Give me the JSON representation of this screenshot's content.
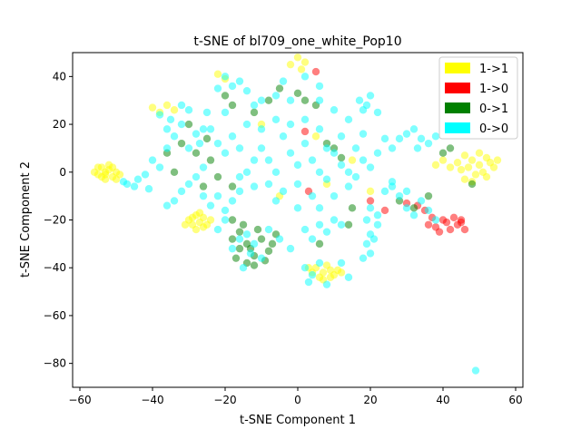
{
  "chart_data": {
    "type": "scatter",
    "title": "t-SNE of bl709_one_white_Pop10",
    "xlabel": "t-SNE Component 1",
    "ylabel": "t-SNE Component 2",
    "xlim": [
      -62,
      62
    ],
    "ylim": [
      -90,
      50
    ],
    "xticks": [
      -60,
      -40,
      -20,
      0,
      20,
      40,
      60
    ],
    "yticks": [
      -80,
      -60,
      -40,
      -20,
      0,
      20,
      40
    ],
    "xtick_labels": [
      "−60",
      "−40",
      "−20",
      "0",
      "20",
      "40",
      "60"
    ],
    "ytick_labels": [
      "−80",
      "−60",
      "−40",
      "−20",
      "0",
      "20",
      "40"
    ],
    "grid": false,
    "legend_position": "top-right",
    "colors": {
      "1->1": "#ffff00",
      "1->0": "#ff0000",
      "0->1": "#008000",
      "0->0": "#00ffff"
    },
    "series": [
      {
        "name": "1->1",
        "color": "#ffff00",
        "points": [
          [
            -54,
            2
          ],
          [
            -53,
            0
          ],
          [
            -55,
            -1
          ],
          [
            -52,
            1
          ],
          [
            -51,
            -2
          ],
          [
            -53,
            -3
          ],
          [
            -56,
            0
          ],
          [
            -50,
            0
          ],
          [
            -52,
            3
          ],
          [
            -54,
            -2
          ],
          [
            -49,
            -1
          ],
          [
            -51,
            2
          ],
          [
            -55,
            2
          ],
          [
            -53,
            -1
          ],
          [
            -50,
            -3
          ],
          [
            -28,
            -18
          ],
          [
            -27,
            -21
          ],
          [
            -29,
            -22
          ],
          [
            -26,
            -19
          ],
          [
            -30,
            -20
          ],
          [
            -25,
            -22
          ],
          [
            -28,
            -24
          ],
          [
            -27,
            -17
          ],
          [
            -24,
            -20
          ],
          [
            -29,
            -19
          ],
          [
            -26,
            -23
          ],
          [
            -31,
            -22
          ],
          [
            5,
            -40
          ],
          [
            7,
            -42
          ],
          [
            9,
            -41
          ],
          [
            6,
            -44
          ],
          [
            10,
            -43
          ],
          [
            8,
            -39
          ],
          [
            4,
            -42
          ],
          [
            11,
            -41
          ],
          [
            7,
            -45
          ],
          [
            3,
            -40
          ],
          [
            9,
            -44
          ],
          [
            12,
            -42
          ],
          [
            48,
            5
          ],
          [
            50,
            3
          ],
          [
            52,
            6
          ],
          [
            47,
            2
          ],
          [
            51,
            0
          ],
          [
            53,
            4
          ],
          [
            46,
            7
          ],
          [
            49,
            -1
          ],
          [
            54,
            2
          ],
          [
            50,
            8
          ],
          [
            45,
            1
          ],
          [
            52,
            -2
          ],
          [
            48,
            -4
          ],
          [
            44,
            4
          ],
          [
            55,
            5
          ],
          [
            42,
            2
          ],
          [
            40,
            5
          ],
          [
            38,
            3
          ],
          [
            46,
            -3
          ],
          [
            -40,
            27
          ],
          [
            -38,
            25
          ],
          [
            -36,
            28
          ],
          [
            -34,
            26
          ],
          [
            -22,
            41
          ],
          [
            -20,
            39
          ],
          [
            0,
            48
          ],
          [
            2,
            46
          ],
          [
            -2,
            45
          ],
          [
            1,
            43
          ],
          [
            -10,
            20
          ],
          [
            5,
            15
          ],
          [
            8,
            -5
          ],
          [
            -5,
            -10
          ],
          [
            15,
            5
          ],
          [
            20,
            -8
          ]
        ]
      },
      {
        "name": "1->0",
        "color": "#ff0000",
        "points": [
          [
            36,
            -22
          ],
          [
            38,
            -23
          ],
          [
            40,
            -20
          ],
          [
            42,
            -24
          ],
          [
            44,
            -22
          ],
          [
            46,
            -24
          ],
          [
            39,
            -25
          ],
          [
            41,
            -21
          ],
          [
            43,
            -19
          ],
          [
            45,
            -21
          ],
          [
            37,
            -19
          ],
          [
            35,
            -16
          ],
          [
            33,
            -14
          ],
          [
            30,
            -13
          ],
          [
            5,
            42
          ],
          [
            3,
            -8
          ],
          [
            2,
            17
          ],
          [
            20,
            -12
          ],
          [
            24,
            -16
          ],
          [
            45,
            -20
          ]
        ]
      },
      {
        "name": "0->1",
        "color": "#008000",
        "points": [
          [
            -18,
            -20
          ],
          [
            -16,
            -25
          ],
          [
            -14,
            -30
          ],
          [
            -12,
            -35
          ],
          [
            -16,
            -32
          ],
          [
            -10,
            -28
          ],
          [
            -8,
            -33
          ],
          [
            -14,
            -38
          ],
          [
            -12,
            -39
          ],
          [
            -18,
            -28
          ],
          [
            -15,
            -22
          ],
          [
            -11,
            -24
          ],
          [
            -6,
            -26
          ],
          [
            -9,
            -37
          ],
          [
            -17,
            -36
          ],
          [
            -13,
            -32
          ],
          [
            -7,
            -30
          ],
          [
            -30,
            20
          ],
          [
            -32,
            12
          ],
          [
            -28,
            8
          ],
          [
            -25,
            14
          ],
          [
            -20,
            32
          ],
          [
            -18,
            28
          ],
          [
            -24,
            5
          ],
          [
            -22,
            -2
          ],
          [
            -18,
            -6
          ],
          [
            -12,
            25
          ],
          [
            -8,
            30
          ],
          [
            -5,
            35
          ],
          [
            0,
            33
          ],
          [
            2,
            30
          ],
          [
            5,
            28
          ],
          [
            8,
            12
          ],
          [
            10,
            10
          ],
          [
            12,
            6
          ],
          [
            15,
            -15
          ],
          [
            14,
            -22
          ],
          [
            6,
            -30
          ],
          [
            28,
            -12
          ],
          [
            32,
            -15
          ],
          [
            36,
            -10
          ],
          [
            40,
            8
          ],
          [
            42,
            10
          ],
          [
            48,
            -5
          ],
          [
            -36,
            8
          ],
          [
            -34,
            0
          ],
          [
            -26,
            -6
          ]
        ]
      },
      {
        "name": "0->0",
        "color": "#00ffff",
        "points": [
          [
            -42,
            -1
          ],
          [
            -44,
            -3
          ],
          [
            -45,
            -6
          ],
          [
            -47,
            -5
          ],
          [
            -48,
            -4
          ],
          [
            -41,
            -7
          ],
          [
            -38,
            24
          ],
          [
            -35,
            22
          ],
          [
            -32,
            20
          ],
          [
            -30,
            26
          ],
          [
            -28,
            16
          ],
          [
            -26,
            18
          ],
          [
            -34,
            15
          ],
          [
            -30,
            10
          ],
          [
            -25,
            25
          ],
          [
            -36,
            18
          ],
          [
            -32,
            28
          ],
          [
            -27,
            12
          ],
          [
            -24,
            -14
          ],
          [
            -22,
            -10
          ],
          [
            -20,
            -16
          ],
          [
            -18,
            -12
          ],
          [
            -26,
            -10
          ],
          [
            -16,
            -8
          ],
          [
            -20,
            -20
          ],
          [
            -22,
            -24
          ],
          [
            -20,
            40
          ],
          [
            -18,
            36
          ],
          [
            -16,
            38
          ],
          [
            -22,
            35
          ],
          [
            -14,
            34
          ],
          [
            -12,
            28
          ],
          [
            -20,
            25
          ],
          [
            -10,
            10
          ],
          [
            -8,
            5
          ],
          [
            -6,
            0
          ],
          [
            -4,
            15
          ],
          [
            -2,
            8
          ],
          [
            0,
            3
          ],
          [
            2,
            12
          ],
          [
            4,
            5
          ],
          [
            6,
            0
          ],
          [
            8,
            -3
          ],
          [
            10,
            8
          ],
          [
            12,
            3
          ],
          [
            14,
            0
          ],
          [
            -12,
            5
          ],
          [
            -14,
            0
          ],
          [
            -16,
            10
          ],
          [
            -18,
            15
          ],
          [
            -8,
            -5
          ],
          [
            -4,
            -8
          ],
          [
            0,
            -5
          ],
          [
            4,
            -10
          ],
          [
            8,
            10
          ],
          [
            12,
            15
          ],
          [
            16,
            10
          ],
          [
            18,
            5
          ],
          [
            -2,
            20
          ],
          [
            2,
            22
          ],
          [
            6,
            18
          ],
          [
            -6,
            22
          ],
          [
            -10,
            18
          ],
          [
            -14,
            20
          ],
          [
            -16,
            -2
          ],
          [
            -12,
            -6
          ],
          [
            -6,
            -12
          ],
          [
            0,
            -15
          ],
          [
            6,
            -15
          ],
          [
            10,
            -10
          ],
          [
            14,
            -6
          ],
          [
            16,
            -2
          ],
          [
            20,
            2
          ],
          [
            22,
            8
          ],
          [
            18,
            16
          ],
          [
            14,
            22
          ],
          [
            10,
            26
          ],
          [
            6,
            30
          ],
          [
            -2,
            30
          ],
          [
            -6,
            32
          ],
          [
            -10,
            30
          ],
          [
            -4,
            38
          ],
          [
            2,
            40
          ],
          [
            6,
            36
          ],
          [
            -20,
            8
          ],
          [
            -22,
            12
          ],
          [
            -24,
            18
          ],
          [
            -26,
            2
          ],
          [
            -28,
            -2
          ],
          [
            -30,
            -5
          ],
          [
            -32,
            -8
          ],
          [
            -34,
            -12
          ],
          [
            -36,
            -14
          ],
          [
            -38,
            2
          ],
          [
            -40,
            5
          ],
          [
            -36,
            10
          ],
          [
            -14,
            -26
          ],
          [
            -12,
            -30
          ],
          [
            -10,
            -36
          ],
          [
            -15,
            -40
          ],
          [
            -13,
            -34
          ],
          [
            -8,
            -24
          ],
          [
            -5,
            -28
          ],
          [
            -2,
            -32
          ],
          [
            -18,
            -32
          ],
          [
            -16,
            -28
          ],
          [
            2,
            -24
          ],
          [
            4,
            -28
          ],
          [
            8,
            -25
          ],
          [
            10,
            -20
          ],
          [
            12,
            -22
          ],
          [
            6,
            -22
          ],
          [
            2,
            -40
          ],
          [
            4,
            -43
          ],
          [
            6,
            -38
          ],
          [
            12,
            -38
          ],
          [
            14,
            -44
          ],
          [
            3,
            -46
          ],
          [
            8,
            -47
          ],
          [
            17,
            30
          ],
          [
            19,
            28
          ],
          [
            20,
            32
          ],
          [
            18,
            26
          ],
          [
            22,
            25
          ],
          [
            24,
            14
          ],
          [
            26,
            10
          ],
          [
            28,
            14
          ],
          [
            30,
            16
          ],
          [
            32,
            18
          ],
          [
            34,
            14
          ],
          [
            36,
            12
          ],
          [
            38,
            15
          ],
          [
            33,
            10
          ],
          [
            20,
            -15
          ],
          [
            22,
            -22
          ],
          [
            20,
            -26
          ],
          [
            21,
            -28
          ],
          [
            22,
            -18
          ],
          [
            19,
            -20
          ],
          [
            20,
            -34
          ],
          [
            18,
            -36
          ],
          [
            19,
            -30
          ],
          [
            26,
            -6
          ],
          [
            28,
            -10
          ],
          [
            30,
            -15
          ],
          [
            32,
            -18
          ],
          [
            34,
            -12
          ],
          [
            36,
            -16
          ],
          [
            38,
            -20
          ],
          [
            30,
            -8
          ],
          [
            26,
            -4
          ],
          [
            24,
            -8
          ],
          [
            49,
            -83
          ]
        ]
      }
    ]
  },
  "legend": {
    "items": [
      {
        "label": "1->1",
        "color": "#ffff00"
      },
      {
        "label": "1->0",
        "color": "#ff0000"
      },
      {
        "label": "0->1",
        "color": "#008000"
      },
      {
        "label": "0->0",
        "color": "#00ffff"
      }
    ]
  }
}
